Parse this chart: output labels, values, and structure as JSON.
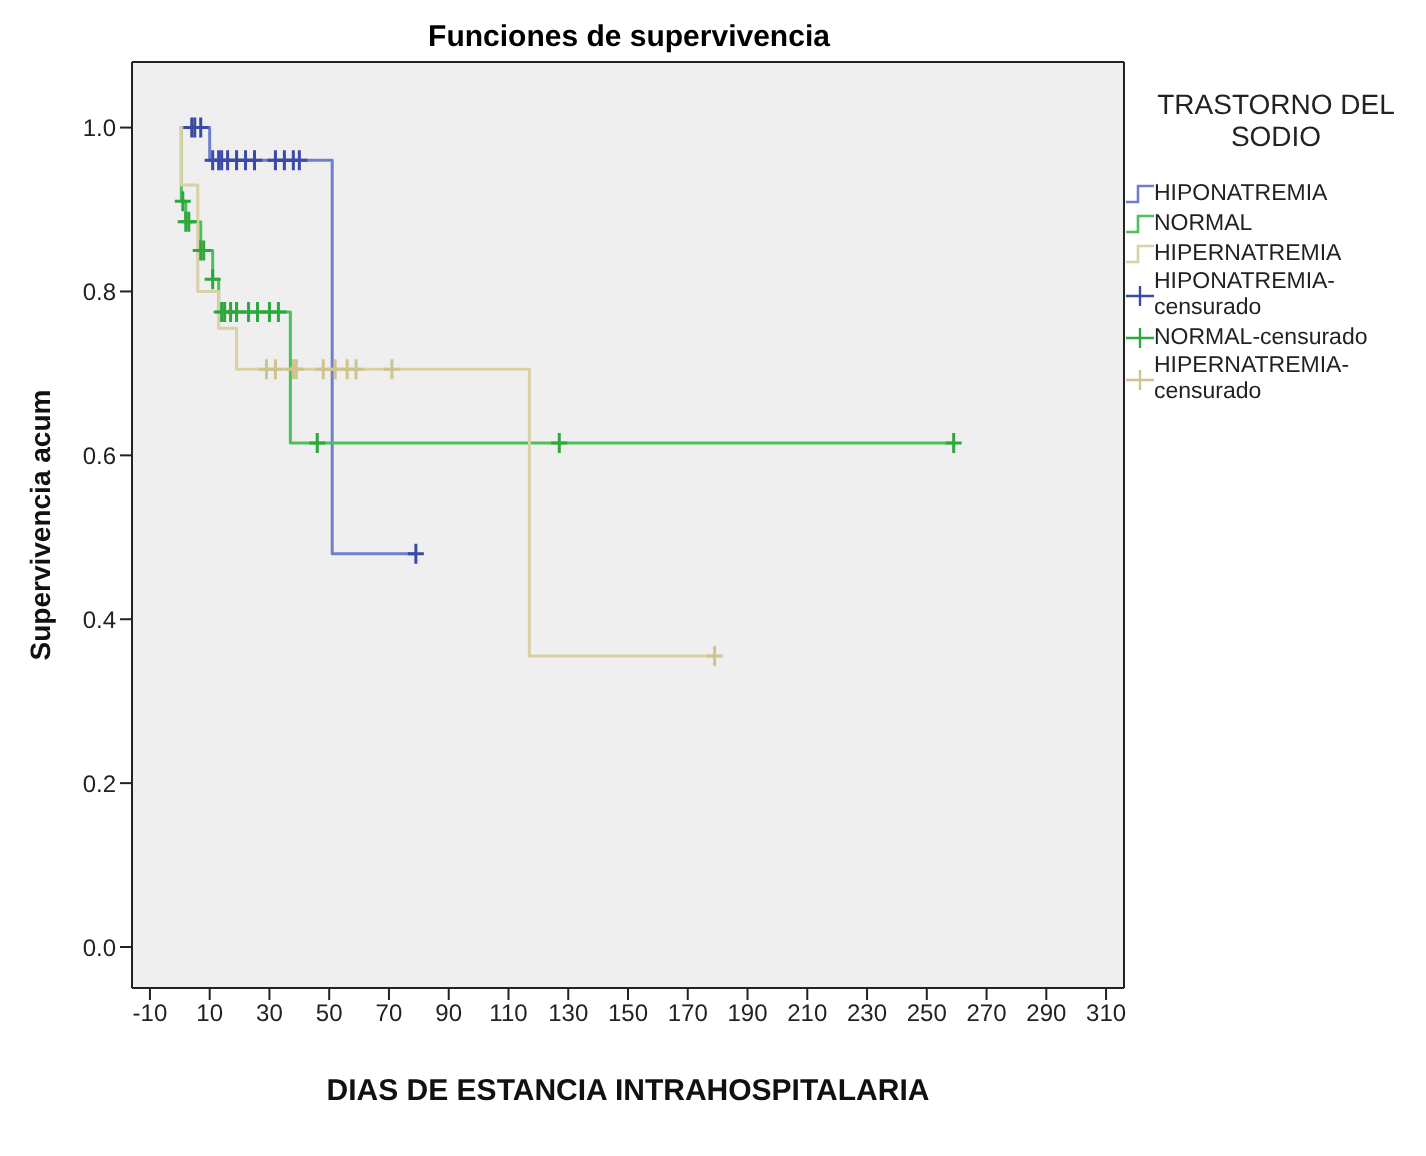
{
  "chart_data": {
    "type": "step",
    "title": "Funciones de supervivencia",
    "xlabel": "DIAS DE ESTANCIA INTRAHOSPITALARIA",
    "ylabel": "Supervivencia acum",
    "legend_title": "TRASTORNO DEL SODIO",
    "legend": "right",
    "grid": false,
    "xlim": [
      -16,
      316
    ],
    "ylim": [
      -0.05,
      1.08
    ],
    "xticks": [
      -10,
      10,
      30,
      50,
      70,
      90,
      110,
      130,
      150,
      170,
      190,
      210,
      230,
      250,
      270,
      290,
      310
    ],
    "yticks": [
      {
        "value": 0,
        "label": "0.0"
      },
      {
        "value": 0.2,
        "label": "0.2"
      },
      {
        "value": 0.4,
        "label": "0.4"
      },
      {
        "value": 0.6,
        "label": "0.6"
      },
      {
        "value": 0.8,
        "label": "0.8"
      },
      {
        "value": 1,
        "label": "1.0"
      }
    ],
    "series": [
      {
        "name": "HIPONATREMIA",
        "marker": "none",
        "color": "#6f7fcc",
        "x": [
          0,
          10,
          51,
          79
        ],
        "values": [
          1,
          0.96,
          0.48,
          0.48
        ]
      },
      {
        "name": "NORMAL",
        "marker": "none",
        "color": "#4cc05a",
        "x": [
          0,
          0.5,
          2,
          7,
          11,
          13,
          37,
          259
        ],
        "values": [
          1,
          0.91,
          0.885,
          0.85,
          0.815,
          0.775,
          0.615,
          0.615
        ]
      },
      {
        "name": "HIPERNATREMIA",
        "marker": "none",
        "color": "#d9d0a6",
        "x": [
          0,
          0.5,
          6,
          13,
          19,
          117,
          179
        ],
        "values": [
          1,
          0.93,
          0.8,
          0.755,
          0.705,
          0.355,
          0.355
        ]
      },
      {
        "name": "HIPONATREMIA-censurado",
        "type": "scatter",
        "marker": "cross",
        "color": "#3a4aa6",
        "x": [
          4,
          5,
          7,
          11,
          13,
          14,
          16,
          19,
          22,
          25,
          32,
          35,
          38,
          40,
          79
        ],
        "values": [
          1,
          1,
          1,
          0.96,
          0.96,
          0.96,
          0.96,
          0.96,
          0.96,
          0.96,
          0.96,
          0.96,
          0.96,
          0.96,
          0.48
        ]
      },
      {
        "name": "NORMAL-censurado",
        "type": "scatter",
        "marker": "cross",
        "color": "#2ea83c",
        "x": [
          1,
          2,
          3,
          7,
          8,
          11,
          14,
          15,
          17,
          19,
          23,
          26,
          30,
          33,
          46,
          127,
          259
        ],
        "values": [
          0.91,
          0.885,
          0.885,
          0.85,
          0.85,
          0.815,
          0.775,
          0.775,
          0.775,
          0.775,
          0.775,
          0.775,
          0.775,
          0.775,
          0.615,
          0.615,
          0.615
        ]
      },
      {
        "name": "HIPERNATREMIA-censurado",
        "type": "scatter",
        "marker": "cross",
        "color": "#cfc48e",
        "x": [
          29,
          32,
          38,
          39,
          48,
          52,
          56,
          59,
          71,
          179
        ],
        "values": [
          0.705,
          0.705,
          0.705,
          0.705,
          0.705,
          0.705,
          0.705,
          0.705,
          0.705,
          0.355
        ]
      }
    ]
  }
}
